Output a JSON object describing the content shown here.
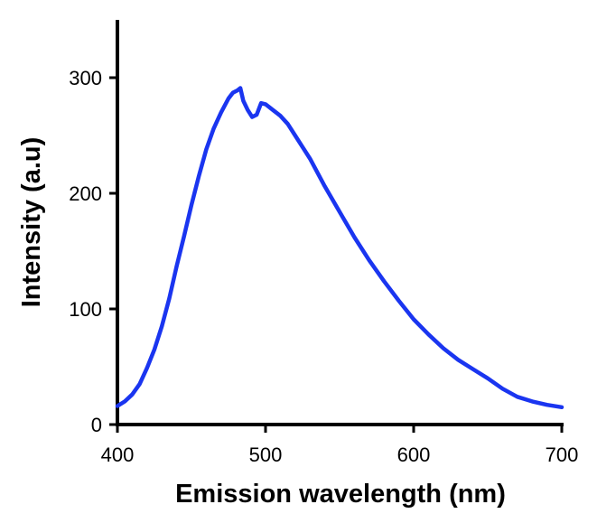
{
  "chart_data": {
    "type": "line",
    "xlabel": "Emission wavelength (nm)",
    "ylabel": "Intensity (a.u)",
    "xlim": [
      400,
      700
    ],
    "ylim": [
      0,
      350
    ],
    "xticks": [
      400,
      500,
      600,
      700
    ],
    "yticks": [
      0,
      100,
      200,
      300
    ],
    "xtick_labels": [
      "400",
      "500",
      "600",
      "700"
    ],
    "ytick_labels": [
      "0",
      "100",
      "200",
      "300"
    ],
    "grid": false,
    "legend": "none",
    "series": [
      {
        "color": "#1a35f0",
        "x": [
          400,
          405,
          410,
          415,
          420,
          425,
          430,
          435,
          440,
          445,
          450,
          455,
          460,
          465,
          470,
          475,
          478,
          481,
          483,
          485,
          488,
          491,
          494,
          497,
          500,
          505,
          510,
          515,
          520,
          525,
          530,
          540,
          550,
          560,
          570,
          580,
          590,
          600,
          610,
          620,
          630,
          640,
          650,
          660,
          670,
          680,
          690,
          700
        ],
        "values": [
          16,
          20,
          26,
          35,
          49,
          65,
          85,
          109,
          137,
          163,
          190,
          215,
          238,
          256,
          270,
          282,
          287,
          289,
          291,
          280,
          272,
          266,
          268,
          278,
          277,
          272,
          267,
          260,
          250,
          240,
          230,
          206,
          184,
          162,
          142,
          124,
          107,
          91,
          78,
          66,
          56,
          48,
          40,
          31,
          24,
          20,
          17,
          15
        ]
      }
    ]
  }
}
